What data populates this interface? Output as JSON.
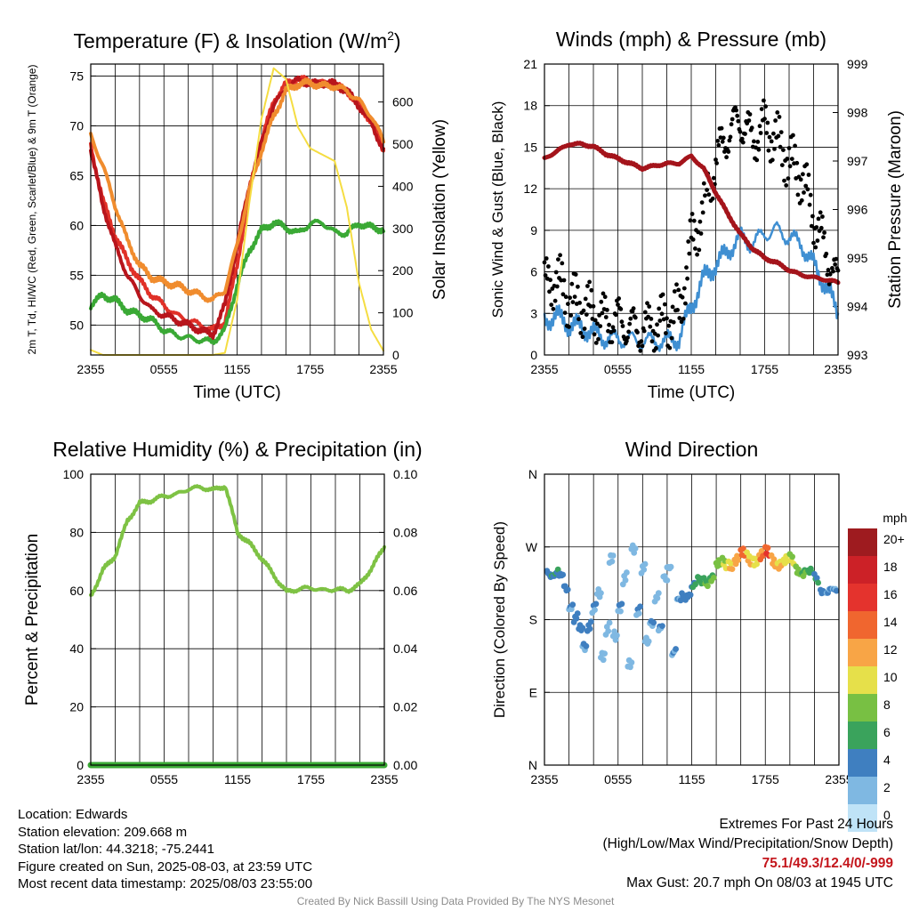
{
  "chart_data": [
    {
      "type": "line",
      "title": "Temperature (F) & Insolation (W/m2)",
      "ylabel": "2m T, Td, HI/WC (Red, Green, Scarlet/Blue) & 9m T (Orange)",
      "y2label": "Solar Insolation (Yellow)",
      "xlabel": "Time (UTC)",
      "x_ticks": [
        "2355",
        "0555",
        "1155",
        "1755",
        "2355"
      ],
      "x": [
        0,
        1,
        2,
        3,
        4,
        5,
        6,
        7,
        8,
        9,
        10,
        11,
        12,
        13,
        14,
        15,
        16,
        17,
        18,
        19,
        20,
        21,
        22,
        23,
        24
      ],
      "y_ticks": [
        50,
        55,
        60,
        65,
        70,
        75
      ],
      "ylim": [
        47,
        76.2
      ],
      "y2_ticks": [
        0,
        100,
        200,
        300,
        400,
        500,
        600
      ],
      "y2lim": [
        0,
        690
      ],
      "grid": true,
      "series": [
        {
          "name": "Red",
          "color": "#e03128",
          "axis": "left",
          "values": [
            68,
            62.5,
            59,
            56.5,
            54.5,
            53,
            52,
            51,
            50.5,
            50,
            49.5,
            50.3,
            56,
            63.5,
            68.5,
            72.5,
            74.2,
            74.8,
            74.5,
            74.3,
            74.2,
            73.5,
            72,
            70.5,
            67.5
          ]
        },
        {
          "name": "Scarlet",
          "color": "#b8151c",
          "axis": "left",
          "values": [
            67.5,
            62,
            58,
            55,
            53,
            51.5,
            51,
            50.5,
            50,
            49.5,
            49,
            52,
            58,
            64,
            68.3,
            72,
            73.8,
            74.6,
            74.2,
            74.3,
            74.2,
            73.5,
            72,
            70.3,
            67.5
          ]
        },
        {
          "name": "Orange",
          "color": "#f08c2e",
          "axis": "left",
          "values": [
            69,
            66,
            62,
            58.5,
            56,
            54.8,
            54.3,
            54,
            53.5,
            53,
            52.5,
            53.5,
            58,
            63.5,
            67.5,
            71,
            73.5,
            74.2,
            74.3,
            74,
            74,
            73.5,
            72.5,
            71,
            68.5
          ]
        },
        {
          "name": "Green",
          "color": "#3aa935",
          "axis": "left",
          "values": [
            52,
            53,
            52.5,
            51.5,
            51,
            50.5,
            49.5,
            49,
            48.7,
            48.5,
            48.3,
            49.5,
            54,
            57.5,
            59.5,
            60.3,
            59.8,
            59.2,
            60.2,
            60.3,
            59.3,
            59.2,
            60.2,
            59.8,
            59.6
          ]
        },
        {
          "name": "Yellow",
          "color": "#f5dd42",
          "axis": "right",
          "values": [
            12,
            0,
            0,
            0,
            0,
            0,
            0,
            0,
            0,
            0,
            0,
            5,
            130,
            360,
            560,
            680,
            655,
            540,
            490,
            475,
            460,
            350,
            170,
            60,
            10
          ]
        }
      ]
    },
    {
      "type": "line",
      "title": "Winds (mph) & Pressure (mb)",
      "ylabel": "Sonic Wind & Gust (Blue, Black)",
      "y2label": "Station Pressure (Maroon)",
      "xlabel": "Time (UTC)",
      "x_ticks": [
        "2355",
        "0555",
        "1155",
        "1755",
        "2355"
      ],
      "x": [
        0,
        1,
        2,
        3,
        4,
        5,
        6,
        7,
        8,
        9,
        10,
        11,
        12,
        13,
        14,
        15,
        16,
        17,
        18,
        19,
        20,
        21,
        22,
        23,
        24
      ],
      "y_ticks": [
        0,
        3,
        6,
        9,
        12,
        15,
        18,
        21
      ],
      "ylim": [
        0,
        21
      ],
      "y2_ticks": [
        993,
        994,
        995,
        996,
        997,
        998,
        999
      ],
      "y2lim": [
        993,
        999
      ],
      "grid": true,
      "series": [
        {
          "name": "Blue",
          "color": "#3f8fd2",
          "axis": "left",
          "values": [
            2.5,
            2.8,
            2.2,
            2,
            1.6,
            1.2,
            1.2,
            1.1,
            1,
            1,
            1,
            1.2,
            3.5,
            5.5,
            6.5,
            7.5,
            8.5,
            8,
            8.8,
            9,
            8.5,
            8,
            6.5,
            5,
            3
          ]
        },
        {
          "name": "Black",
          "color": "#000000",
          "axis": "left",
          "values": [
            5,
            5.5,
            4,
            3.5,
            3,
            2.5,
            2.6,
            2,
            1.8,
            2.2,
            2.5,
            3,
            8,
            10.5,
            14,
            16,
            17,
            15.5,
            16.5,
            15.5,
            14,
            13,
            10,
            7.5,
            5
          ]
        },
        {
          "name": "Maroon",
          "color": "#a4141b",
          "axis": "right",
          "values": [
            997.05,
            997.2,
            997.35,
            997.35,
            997.3,
            997.15,
            997.05,
            996.95,
            996.85,
            996.9,
            996.95,
            996.95,
            997.1,
            996.85,
            996.35,
            995.9,
            995.5,
            995.2,
            995.0,
            994.9,
            994.75,
            994.65,
            994.6,
            994.55,
            994.5
          ]
        }
      ]
    },
    {
      "type": "line",
      "title": "Relative Humidity (%) & Precipitation (in)",
      "ylabel": "Percent & Precipitation",
      "x_ticks": [
        "2355",
        "0555",
        "1155",
        "1755",
        "2355"
      ],
      "x": [
        0,
        1,
        2,
        3,
        4,
        5,
        6,
        7,
        8,
        9,
        10,
        11,
        12,
        13,
        14,
        15,
        16,
        17,
        18,
        19,
        20,
        21,
        22,
        23,
        24
      ],
      "y_ticks": [
        0,
        20,
        40,
        60,
        80,
        100
      ],
      "ylim": [
        0,
        100
      ],
      "y2_ticks": [
        "0.00",
        "0.02",
        "0.04",
        "0.06",
        "0.08",
        "0.10"
      ],
      "y2lim": [
        0,
        0.1
      ],
      "grid": true,
      "series": [
        {
          "name": "RH",
          "color": "#7ec244",
          "axis": "left",
          "values": [
            58,
            67,
            72,
            84,
            90,
            91,
            92.5,
            93,
            95,
            95.5,
            94.5,
            96,
            80,
            76,
            71,
            65,
            59.5,
            60.5,
            61,
            60,
            60.5,
            60,
            62,
            68,
            75
          ]
        },
        {
          "name": "Precipitation",
          "color": "#3aa935",
          "axis": "right",
          "values": [
            0,
            0,
            0,
            0,
            0,
            0,
            0,
            0,
            0,
            0,
            0,
            0,
            0,
            0,
            0,
            0,
            0,
            0,
            0,
            0,
            0,
            0,
            0,
            0,
            0
          ]
        }
      ]
    },
    {
      "type": "scatter",
      "title": "Wind Direction",
      "ylabel": "Direction (Colored By Speed)",
      "x_ticks": [
        "2355",
        "0555",
        "1155",
        "1755",
        "2355"
      ],
      "y_ticks": [
        "N",
        "E",
        "S",
        "W",
        "N"
      ],
      "ylim": [
        0,
        360
      ],
      "grid": true,
      "points": [
        [
          0.2,
          235,
          3
        ],
        [
          0.5,
          240,
          4
        ],
        [
          0.8,
          238,
          4
        ],
        [
          1.2,
          230,
          3
        ],
        [
          1.6,
          220,
          3
        ],
        [
          2.0,
          200,
          2
        ],
        [
          2.4,
          180,
          3
        ],
        [
          2.8,
          165,
          3
        ],
        [
          3.1,
          150,
          2
        ],
        [
          3.5,
          175,
          3
        ],
        [
          3.9,
          190,
          2
        ],
        [
          4.3,
          210,
          1
        ],
        [
          4.6,
          140,
          1
        ],
        [
          5.0,
          170,
          1
        ],
        [
          5.3,
          250,
          1
        ],
        [
          5.6,
          160,
          1
        ],
        [
          6.0,
          200,
          2
        ],
        [
          6.4,
          230,
          1
        ],
        [
          6.8,
          120,
          1
        ],
        [
          7.1,
          270,
          1
        ],
        [
          7.5,
          195,
          2
        ],
        [
          7.9,
          240,
          1
        ],
        [
          8.2,
          150,
          1
        ],
        [
          8.6,
          180,
          2
        ],
        [
          9.0,
          210,
          1
        ],
        [
          9.3,
          165,
          2
        ],
        [
          9.7,
          230,
          1
        ],
        [
          10.0,
          250,
          1
        ],
        [
          10.4,
          140,
          2
        ],
        [
          10.8,
          200,
          2
        ],
        [
          11.2,
          210,
          3
        ],
        [
          11.6,
          215,
          3
        ],
        [
          12.0,
          220,
          4
        ],
        [
          12.5,
          225,
          5
        ],
        [
          13.0,
          230,
          6
        ],
        [
          13.5,
          235,
          6
        ],
        [
          14.0,
          245,
          7
        ],
        [
          14.5,
          248,
          8
        ],
        [
          15.0,
          252,
          10
        ],
        [
          15.5,
          255,
          11
        ],
        [
          16.0,
          258,
          13
        ],
        [
          16.5,
          256,
          10
        ],
        [
          17.0,
          257,
          9
        ],
        [
          17.5,
          258,
          12
        ],
        [
          18.0,
          260,
          14
        ],
        [
          18.5,
          255,
          11
        ],
        [
          19.0,
          252,
          10
        ],
        [
          19.5,
          250,
          9
        ],
        [
          20.0,
          252,
          8
        ],
        [
          20.5,
          245,
          7
        ],
        [
          21.0,
          240,
          6
        ],
        [
          21.5,
          235,
          5
        ],
        [
          22.0,
          230,
          4
        ],
        [
          22.5,
          220,
          3
        ],
        [
          23.0,
          215,
          2
        ],
        [
          23.5,
          212,
          2
        ]
      ],
      "legend": {
        "title": "mph",
        "labels": [
          "20+",
          "18",
          "16",
          "14",
          "12",
          "10",
          "8",
          "6",
          "4",
          "2",
          "0"
        ],
        "colors": [
          "#9e1b1f",
          "#cc2127",
          "#e4332d",
          "#f0662f",
          "#f8a546",
          "#e6e04a",
          "#78c043",
          "#3aa35c",
          "#3f7fc0",
          "#7fb8e2",
          "#bfe3f7"
        ]
      }
    }
  ],
  "info": {
    "location": "Location: Edwards",
    "elevation": "Station elevation: 209.668 m",
    "latlon": "Station lat/lon: 44.3218; -75.2441",
    "created": "Figure created on Sun, 2025-08-03, at 23:59 UTC",
    "recent": "Most recent data timestamp: 2025/08/03 23:55:00"
  },
  "extremes": {
    "title": "Extremes For Past 24 Hours",
    "subtitle": "(High/Low/Max Wind/Precipitation/Snow Depth)",
    "values": "75.1/49.3/12.4/0/-999",
    "max_gust": "Max Gust: 20.7 mph On 08/03 at 1945 UTC"
  },
  "credit": "Created By Nick Bassill Using Data Provided By The NYS Mesonet"
}
